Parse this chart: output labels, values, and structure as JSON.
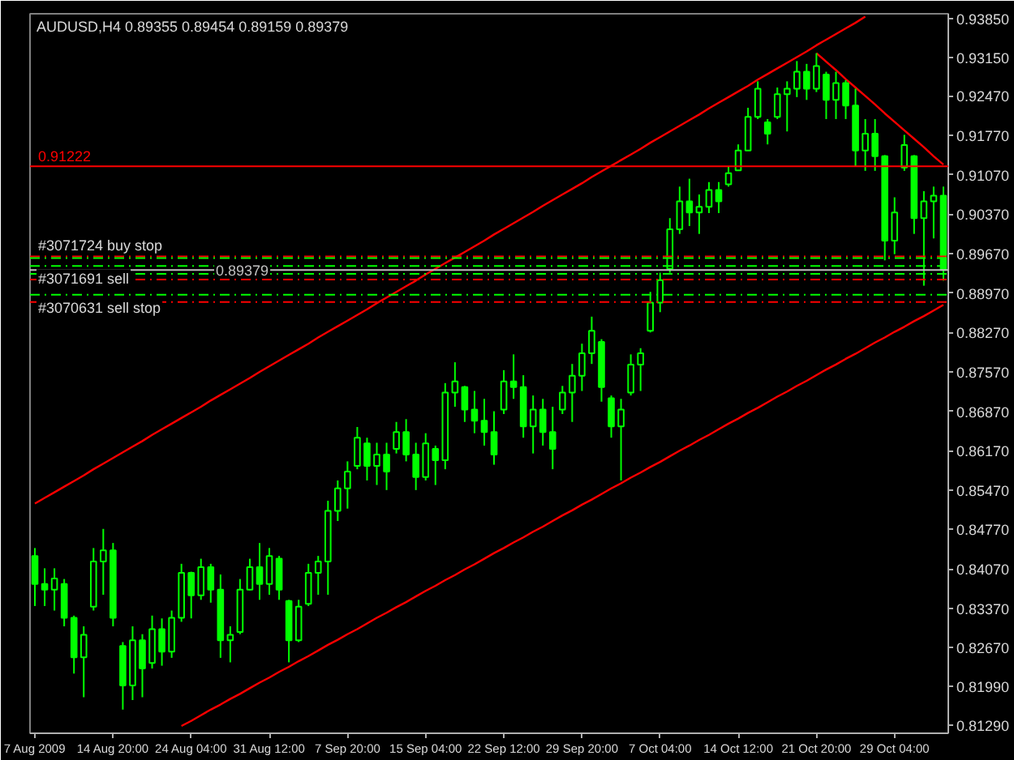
{
  "chart_data": {
    "type": "candlestick",
    "title": "AUDUSD,H4  0.89355 0.89454 0.89159 0.89379",
    "color": "#00ff00",
    "categories": [
      "7 Aug 2009",
      null,
      null,
      null,
      null,
      null,
      null,
      null,
      "14 Aug 20:00",
      null,
      null,
      null,
      null,
      null,
      null,
      null,
      "24 Aug 04:00",
      null,
      null,
      null,
      null,
      null,
      null,
      null,
      "31 Aug 12:00",
      null,
      null,
      null,
      null,
      null,
      null,
      null,
      "7 Sep 20:00",
      null,
      null,
      null,
      null,
      null,
      null,
      null,
      "15 Sep 04:00",
      null,
      null,
      null,
      null,
      null,
      null,
      null,
      "22 Sep 12:00",
      null,
      null,
      null,
      null,
      null,
      null,
      null,
      "29 Sep 20:00",
      null,
      null,
      null,
      null,
      null,
      null,
      null,
      "7 Oct 04:00",
      null,
      null,
      null,
      null,
      null,
      null,
      null,
      "14 Oct 12:00",
      null,
      null,
      null,
      null,
      null,
      null,
      null,
      "21 Oct 20:00",
      null,
      null,
      null,
      null,
      null,
      null,
      null,
      "29 Oct 04:00",
      null,
      null,
      null,
      null,
      null
    ],
    "ohlc": [
      [
        0.843,
        0.8444,
        0.8341,
        0.838
      ],
      [
        0.838,
        0.8408,
        0.8341,
        0.837
      ],
      [
        0.837,
        0.8408,
        0.8333,
        0.839
      ],
      [
        0.838,
        0.8389,
        0.8305,
        0.832
      ],
      [
        0.832,
        0.8324,
        0.8221,
        0.825
      ],
      [
        0.825,
        0.8305,
        0.8179,
        0.829
      ],
      [
        0.834,
        0.8444,
        0.8333,
        0.842
      ],
      [
        0.842,
        0.8478,
        0.8361,
        0.844
      ],
      [
        0.844,
        0.8453,
        0.8305,
        0.832
      ],
      [
        0.827,
        0.8277,
        0.8157,
        0.82
      ],
      [
        0.82,
        0.8305,
        0.8174,
        0.828
      ],
      [
        0.828,
        0.8291,
        0.8179,
        0.823
      ],
      [
        0.824,
        0.8324,
        0.823,
        0.83
      ],
      [
        0.83,
        0.8319,
        0.8235,
        0.826
      ],
      [
        0.826,
        0.8333,
        0.8249,
        0.832
      ],
      [
        0.832,
        0.8416,
        0.8313,
        0.84
      ],
      [
        0.84,
        0.8402,
        0.8319,
        0.836
      ],
      [
        0.836,
        0.8425,
        0.8352,
        0.841
      ],
      [
        0.841,
        0.8416,
        0.8347,
        0.837
      ],
      [
        0.837,
        0.8397,
        0.8249,
        0.828
      ],
      [
        0.828,
        0.8305,
        0.8241,
        0.829
      ],
      [
        0.8295,
        0.8389,
        0.8291,
        0.837
      ],
      [
        0.837,
        0.8425,
        0.8369,
        0.841
      ],
      [
        0.841,
        0.8453,
        0.8352,
        0.838
      ],
      [
        0.838,
        0.8444,
        0.8361,
        0.843
      ],
      [
        0.8425,
        0.843,
        0.8352,
        0.837
      ],
      [
        0.835,
        0.8352,
        0.8241,
        0.828
      ],
      [
        0.828,
        0.8352,
        0.8277,
        0.834
      ],
      [
        0.8345,
        0.8416,
        0.8341,
        0.84
      ],
      [
        0.84,
        0.843,
        0.8361,
        0.842
      ],
      [
        0.842,
        0.8528,
        0.8361,
        0.851
      ],
      [
        0.851,
        0.8564,
        0.8492,
        0.855
      ],
      [
        0.855,
        0.8598,
        0.8514,
        0.858
      ],
      [
        0.859,
        0.8659,
        0.8584,
        0.864
      ],
      [
        0.863,
        0.864,
        0.8564,
        0.859
      ],
      [
        0.859,
        0.8631,
        0.8556,
        0.861
      ],
      [
        0.861,
        0.8631,
        0.8547,
        0.858
      ],
      [
        0.862,
        0.8668,
        0.8612,
        0.865
      ],
      [
        0.865,
        0.8673,
        0.8598,
        0.861
      ],
      [
        0.861,
        0.8631,
        0.8547,
        0.857
      ],
      [
        0.857,
        0.8648,
        0.8564,
        0.863
      ],
      [
        0.862,
        0.8626,
        0.8556,
        0.86
      ],
      [
        0.86,
        0.8737,
        0.8584,
        0.872
      ],
      [
        0.872,
        0.8774,
        0.8695,
        0.874
      ],
      [
        0.873,
        0.8732,
        0.8668,
        0.869
      ],
      [
        0.869,
        0.8723,
        0.8648,
        0.867
      ],
      [
        0.867,
        0.8709,
        0.8626,
        0.865
      ],
      [
        0.865,
        0.8687,
        0.8592,
        0.861
      ],
      [
        0.869,
        0.876,
        0.8682,
        0.874
      ],
      [
        0.874,
        0.8788,
        0.8709,
        0.873
      ],
      [
        0.873,
        0.8751,
        0.864,
        0.866
      ],
      [
        0.866,
        0.8715,
        0.8612,
        0.869
      ],
      [
        0.869,
        0.8709,
        0.8626,
        0.865
      ],
      [
        0.865,
        0.8695,
        0.8584,
        0.862
      ],
      [
        0.869,
        0.8732,
        0.8682,
        0.872
      ],
      [
        0.872,
        0.8771,
        0.8668,
        0.875
      ],
      [
        0.875,
        0.8807,
        0.8723,
        0.879
      ],
      [
        0.879,
        0.8855,
        0.8771,
        0.883
      ],
      [
        0.881,
        0.8815,
        0.8704,
        0.873
      ],
      [
        0.871,
        0.8715,
        0.864,
        0.866
      ],
      [
        0.866,
        0.8709,
        0.8564,
        0.869
      ],
      [
        0.872,
        0.8788,
        0.8715,
        0.877
      ],
      [
        0.877,
        0.8799,
        0.8723,
        0.879
      ],
      [
        0.883,
        0.8899,
        0.8827,
        0.888
      ],
      [
        0.888,
        0.8933,
        0.8863,
        0.892
      ],
      [
        0.894,
        0.903,
        0.8933,
        0.901
      ],
      [
        0.901,
        0.9086,
        0.9002,
        0.906
      ],
      [
        0.906,
        0.91,
        0.9016,
        0.904
      ],
      [
        0.904,
        0.9072,
        0.9002,
        0.905
      ],
      [
        0.905,
        0.9094,
        0.9039,
        0.908
      ],
      [
        0.908,
        0.9094,
        0.9039,
        0.906
      ],
      [
        0.909,
        0.9122,
        0.9086,
        0.911
      ],
      [
        0.9115,
        0.9161,
        0.9114,
        0.915
      ],
      [
        0.915,
        0.9226,
        0.915,
        0.921
      ],
      [
        0.921,
        0.9273,
        0.9206,
        0.926
      ],
      [
        0.92,
        0.9206,
        0.9161,
        0.918
      ],
      [
        0.921,
        0.9262,
        0.9206,
        0.925
      ],
      [
        0.925,
        0.9273,
        0.9184,
        0.926
      ],
      [
        0.926,
        0.9309,
        0.9245,
        0.929
      ],
      [
        0.929,
        0.9304,
        0.924,
        0.926
      ],
      [
        0.926,
        0.9323,
        0.9254,
        0.93
      ],
      [
        0.9285,
        0.929,
        0.9206,
        0.924
      ],
      [
        0.924,
        0.929,
        0.9206,
        0.927
      ],
      [
        0.927,
        0.9275,
        0.9206,
        0.923
      ],
      [
        0.923,
        0.926,
        0.9122,
        0.915
      ],
      [
        0.915,
        0.9206,
        0.9114,
        0.918
      ],
      [
        0.918,
        0.9206,
        0.9114,
        0.914
      ],
      [
        0.914,
        0.9142,
        0.8955,
        0.899
      ],
      [
        0.899,
        0.9067,
        0.8966,
        0.904
      ],
      [
        0.912,
        0.9178,
        0.9114,
        0.916
      ],
      [
        0.914,
        0.9142,
        0.9002,
        0.903
      ],
      [
        0.903,
        0.9078,
        0.891,
        0.906
      ],
      [
        0.906,
        0.9086,
        0.8994,
        0.907
      ],
      [
        0.907,
        0.9086,
        0.8919,
        0.8938
      ]
    ],
    "series": [
      {
        "type": "line",
        "color": "#ff0000",
        "values": [
          0.8523,
          0.8533,
          0.8543,
          0.8553,
          0.8563,
          0.8573,
          0.8584,
          0.8594,
          0.8604,
          0.8614,
          0.8624,
          0.8634,
          0.8645,
          0.8655,
          0.8665,
          0.8675,
          0.8685,
          0.8695,
          0.8706,
          0.8716,
          0.8726,
          0.8736,
          0.8746,
          0.8757,
          0.8767,
          0.8777,
          0.8787,
          0.8797,
          0.8807,
          0.8818,
          0.8828,
          0.8838,
          0.8848,
          0.8858,
          0.8868,
          0.8879,
          0.8889,
          0.8899,
          0.8909,
          0.8919,
          0.893,
          0.894,
          0.895,
          0.896,
          0.897,
          0.898,
          0.899,
          0.9001,
          0.9011,
          0.9021,
          0.9031,
          0.9041,
          0.9052,
          0.9062,
          0.9072,
          0.9082,
          0.9092,
          0.9103,
          0.9113,
          0.9123,
          0.9133,
          0.9143,
          0.9153,
          0.9164,
          0.9174,
          0.9184,
          0.9194,
          0.9204,
          0.9214,
          0.9225,
          0.9235,
          0.9245,
          0.9255,
          0.9265,
          0.9276,
          0.9286,
          0.9296,
          0.9306,
          0.9316,
          0.9326,
          0.9337,
          0.9347,
          0.9357,
          0.9367,
          0.9377,
          0.9388,
          null,
          null,
          null,
          null,
          null,
          null,
          null,
          null
        ]
      },
      {
        "type": "line",
        "color": "#ff0000",
        "values": [
          null,
          null,
          null,
          null,
          null,
          null,
          null,
          null,
          null,
          null,
          null,
          null,
          null,
          null,
          null,
          0.8128,
          0.8137,
          0.8147,
          0.8157,
          0.8166,
          0.8176,
          0.8185,
          0.8195,
          0.8205,
          0.8214,
          0.8224,
          0.8233,
          0.8243,
          0.8252,
          0.8262,
          0.8272,
          0.8281,
          0.8291,
          0.83,
          0.831,
          0.832,
          0.8329,
          0.8339,
          0.8348,
          0.8358,
          0.8368,
          0.8377,
          0.8387,
          0.8396,
          0.8406,
          0.8415,
          0.8425,
          0.8435,
          0.8444,
          0.8454,
          0.8463,
          0.8473,
          0.8482,
          0.8492,
          0.8502,
          0.8511,
          0.8521,
          0.853,
          0.854,
          0.855,
          0.8559,
          0.8569,
          0.8578,
          0.8588,
          0.8597,
          0.8607,
          0.8617,
          0.8626,
          0.8636,
          0.8645,
          0.8655,
          0.8665,
          0.8674,
          0.8684,
          0.8693,
          0.8703,
          0.8713,
          0.8722,
          0.8732,
          0.8741,
          0.8751,
          0.8761,
          0.877,
          0.878,
          0.8789,
          0.8799,
          0.8809,
          0.8818,
          0.8828,
          0.8837,
          0.8847,
          0.8856,
          0.8866,
          0.8876
        ]
      },
      {
        "type": "line",
        "color": "#ff0000",
        "values": [
          null,
          null,
          null,
          null,
          null,
          null,
          null,
          null,
          null,
          null,
          null,
          null,
          null,
          null,
          null,
          null,
          null,
          null,
          null,
          null,
          null,
          null,
          null,
          null,
          null,
          null,
          null,
          null,
          null,
          null,
          null,
          null,
          null,
          null,
          null,
          null,
          null,
          null,
          null,
          null,
          null,
          null,
          null,
          null,
          null,
          null,
          null,
          null,
          null,
          null,
          null,
          null,
          null,
          null,
          null,
          null,
          null,
          null,
          null,
          null,
          null,
          null,
          null,
          null,
          null,
          null,
          null,
          null,
          null,
          null,
          null,
          null,
          null,
          null,
          null,
          null,
          null,
          null,
          null,
          null,
          0.9323,
          0.9308,
          0.9293,
          0.9277,
          0.9262,
          0.9247,
          0.9232,
          0.9216,
          0.9201,
          0.9186,
          0.9171,
          0.9156,
          0.914,
          0.9125
        ]
      }
    ],
    "ref_lines": [
      {
        "axis": "y",
        "value": 0.91222,
        "label": "0.91222",
        "color": "#ff0000",
        "line_style": "solid"
      },
      {
        "axis": "y",
        "value": 0.8962,
        "color": "#ff0000",
        "line_style": "dashed"
      },
      {
        "axis": "y",
        "value": 0.8959,
        "label": "#3071724 buy stop",
        "color": "#00ff00",
        "line_style": "dashed"
      },
      {
        "axis": "y",
        "value": 0.8945,
        "label": "#3071691 sell",
        "color": "#00ff00",
        "line_style": "dashed"
      },
      {
        "axis": "y",
        "value": 0.89379,
        "label": "0.89379",
        "color": "#c0c0c0",
        "line_style": "solid"
      },
      {
        "axis": "y",
        "value": 0.8931,
        "color": "#00ff00",
        "line_style": "dashed"
      },
      {
        "axis": "y",
        "value": 0.8921,
        "color": "#ff0000",
        "line_style": "dashed"
      },
      {
        "axis": "y",
        "value": 0.8894,
        "label": "#3070631 sell stop",
        "color": "#00ff00",
        "line_style": "dashed"
      },
      {
        "axis": "y",
        "value": 0.8881,
        "color": "#ff0000",
        "line_style": "dashed"
      }
    ],
    "ylim": [
      0.8115,
      0.9393
    ],
    "yticks": [
      {
        "value": 0.9385,
        "label": "0.93850"
      },
      {
        "value": 0.9315,
        "label": "0.93150"
      },
      {
        "value": 0.9247,
        "label": "0.92470"
      },
      {
        "value": 0.9177,
        "label": "0.91770"
      },
      {
        "value": 0.9107,
        "label": "0.91070"
      },
      {
        "value": 0.9037,
        "label": "0.90370"
      },
      {
        "value": 0.8967,
        "label": "0.89670"
      },
      {
        "value": 0.8897,
        "label": "0.88970"
      },
      {
        "value": 0.8827,
        "label": "0.88270"
      },
      {
        "value": 0.8757,
        "label": "0.87570"
      },
      {
        "value": 0.8687,
        "label": "0.86870"
      },
      {
        "value": 0.8617,
        "label": "0.86170"
      },
      {
        "value": 0.8547,
        "label": "0.85470"
      },
      {
        "value": 0.8477,
        "label": "0.84770"
      },
      {
        "value": 0.8407,
        "label": "0.84070"
      },
      {
        "value": 0.8337,
        "label": "0.83370"
      },
      {
        "value": 0.8267,
        "label": "0.82670"
      },
      {
        "value": 0.8199,
        "label": "0.81990"
      },
      {
        "value": 0.8129,
        "label": "0.81290"
      }
    ]
  }
}
